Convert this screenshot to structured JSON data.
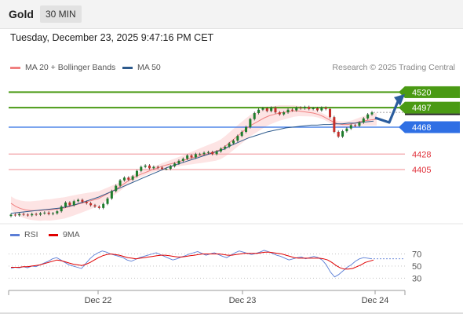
{
  "header": {
    "title": "Gold",
    "timeframe": "30 MIN"
  },
  "datetime": "Tuesday, December 23, 2025 9:47:16 PM CET",
  "legend": {
    "bollinger": {
      "label": "MA 20 + Bollinger Bands",
      "color": "#f08080"
    },
    "ma50": {
      "label": "MA 50",
      "color": "#2d5a8c"
    }
  },
  "credit": "Research © 2025 Trading Central",
  "rsi_legend": {
    "rsi": {
      "label": "RSI",
      "color": "#5b7ed6"
    },
    "ma9": {
      "label": "9MA",
      "color": "#e00000"
    }
  },
  "colors": {
    "resistance": "#4a9a14",
    "pivot": "#2f6fe4",
    "support": "#e0303a",
    "support_line": "#f3a3a8",
    "candle_up": "#1e7d2c",
    "candle_down": "#c4302b",
    "band_fill": "#fde4e4",
    "arrow": "#2b5d9e"
  },
  "chart_data": [
    {
      "type": "candlestick",
      "x_labels": [
        "Dec 22",
        "Dec 23",
        "Dec 24"
      ],
      "price_range": [
        4328,
        4545
      ],
      "levels": [
        {
          "name": "resistance-2",
          "value": 4520,
          "label": "4520",
          "kind": "resistance"
        },
        {
          "name": "resistance-1",
          "value": 4497,
          "label": "4497",
          "kind": "resistance"
        },
        {
          "name": "pivot",
          "value": 4468,
          "label": "4468",
          "kind": "pivot"
        },
        {
          "name": "support-1",
          "value": 4428,
          "label": "4428",
          "kind": "support"
        },
        {
          "name": "support-2",
          "value": 4405,
          "label": "4405",
          "kind": "support"
        }
      ],
      "candles_close": [
        4338,
        4337,
        4339,
        4338,
        4337,
        4339,
        4338,
        4340,
        4341,
        4339,
        4340,
        4343,
        4350,
        4356,
        4352,
        4358,
        4360,
        4357,
        4355,
        4352,
        4350,
        4348,
        4354,
        4362,
        4373,
        4381,
        4389,
        4393,
        4390,
        4395,
        4403,
        4409,
        4411,
        4407,
        4409,
        4408,
        4406,
        4406,
        4410,
        4414,
        4418,
        4421,
        4426,
        4423,
        4428,
        4428,
        4430,
        4431,
        4428,
        4432,
        4436,
        4439,
        4444,
        4448,
        4455,
        4461,
        4468,
        4480,
        4489,
        4494,
        4496,
        4492,
        4497,
        4490,
        4487,
        4490,
        4494,
        4493,
        4497,
        4496,
        4498,
        4495,
        4496,
        4493,
        4497,
        4495,
        4483,
        4461,
        4454,
        4462,
        4466,
        4471,
        4470,
        4475,
        4481,
        4487,
        4490
      ],
      "candles_open": [
        4336,
        4338,
        4337,
        4339,
        4338,
        4337,
        4339,
        4338,
        4340,
        4341,
        4339,
        4340,
        4343,
        4350,
        4356,
        4352,
        4358,
        4360,
        4357,
        4355,
        4352,
        4350,
        4348,
        4354,
        4362,
        4373,
        4381,
        4389,
        4393,
        4390,
        4395,
        4403,
        4409,
        4411,
        4407,
        4409,
        4408,
        4406,
        4406,
        4410,
        4414,
        4418,
        4421,
        4426,
        4423,
        4428,
        4428,
        4430,
        4431,
        4428,
        4432,
        4436,
        4439,
        4444,
        4448,
        4455,
        4461,
        4468,
        4480,
        4489,
        4494,
        4496,
        4492,
        4497,
        4490,
        4487,
        4490,
        4494,
        4493,
        4497,
        4496,
        4498,
        4495,
        4496,
        4493,
        4497,
        4495,
        4483,
        4461,
        4454,
        4462,
        4466,
        4471,
        4470,
        4475,
        4481,
        4487
      ],
      "ma20": [
        4355,
        4350,
        4347,
        4345,
        4344,
        4344,
        4344,
        4345,
        4345,
        4346,
        4347,
        4348,
        4350,
        4352,
        4354,
        4356,
        4358,
        4360,
        4362,
        4366,
        4370,
        4374,
        4378,
        4383,
        4388,
        4392,
        4396,
        4399,
        4402,
        4405,
        4407,
        4410,
        4412,
        4414,
        4416,
        4418,
        4420,
        4422,
        4424,
        4426,
        4428,
        4430,
        4432,
        4435,
        4440,
        4446,
        4452,
        4458,
        4464,
        4470,
        4474,
        4478,
        4482,
        4485,
        4487,
        4489,
        4490,
        4491,
        4492,
        4492,
        4491,
        4490,
        4489,
        4487,
        4484,
        4480,
        4476,
        4473,
        4472,
        4472,
        4473,
        4475,
        4477,
        4478,
        4479,
        4480
      ],
      "ma50": [
        4340,
        4341,
        4342,
        4343,
        4344,
        4345,
        4346,
        4347,
        4348,
        4350,
        4352,
        4355,
        4358,
        4361,
        4364,
        4368,
        4372,
        4376,
        4380,
        4384,
        4388,
        4392,
        4396,
        4400,
        4404,
        4408,
        4411,
        4414,
        4417,
        4420,
        4423,
        4426,
        4429,
        4432,
        4435,
        4440,
        4444,
        4448,
        4452,
        4455,
        4458,
        4461,
        4463,
        4465,
        4467,
        4468,
        4469,
        4470,
        4471,
        4471,
        4472,
        4472,
        4473,
        4473,
        4474,
        4474,
        4475,
        4476,
        4477
      ],
      "forecast_arrow": [
        4482,
        4475,
        4509
      ]
    },
    {
      "type": "line",
      "name": "RSI",
      "y_ticks": [
        70,
        50,
        30
      ],
      "ylim": [
        20,
        85
      ],
      "series": [
        {
          "key": "rsi",
          "values": [
            46,
            48,
            47,
            49,
            47,
            50,
            49,
            52,
            55,
            58,
            62,
            64,
            60,
            56,
            52,
            50,
            48,
            46,
            54,
            62,
            68,
            72,
            75,
            73,
            70,
            68,
            66,
            64,
            60,
            58,
            61,
            64,
            66,
            68,
            70,
            72,
            69,
            66,
            63,
            60,
            62,
            65,
            67,
            70,
            72,
            74,
            71,
            68,
            70,
            72,
            69,
            66,
            64,
            68,
            72,
            75,
            73,
            71,
            69,
            71,
            73,
            76,
            74,
            71,
            68,
            66,
            63,
            60,
            62,
            64,
            65,
            62,
            64,
            66,
            64,
            60,
            52,
            40,
            32,
            36,
            42,
            48,
            52,
            58,
            62,
            64,
            63,
            62
          ]
        },
        {
          "key": "ma9",
          "values": [
            48,
            48,
            48,
            49,
            49,
            50,
            51,
            52,
            54,
            56,
            58,
            60,
            59,
            57,
            55,
            53,
            52,
            51,
            53,
            56,
            60,
            64,
            67,
            69,
            70,
            69,
            68,
            66,
            64,
            63,
            62,
            63,
            64,
            65,
            66,
            67,
            68,
            68,
            67,
            66,
            65,
            65,
            66,
            67,
            68,
            69,
            70,
            70,
            70,
            70,
            70,
            69,
            68,
            68,
            69,
            70,
            71,
            71,
            71,
            71,
            72,
            73,
            73,
            72,
            71,
            70,
            68,
            66,
            64,
            63,
            63,
            63,
            63,
            63,
            63,
            62,
            60,
            56,
            51,
            47,
            45,
            45,
            46,
            49,
            52,
            56,
            58,
            60
          ]
        }
      ]
    }
  ]
}
